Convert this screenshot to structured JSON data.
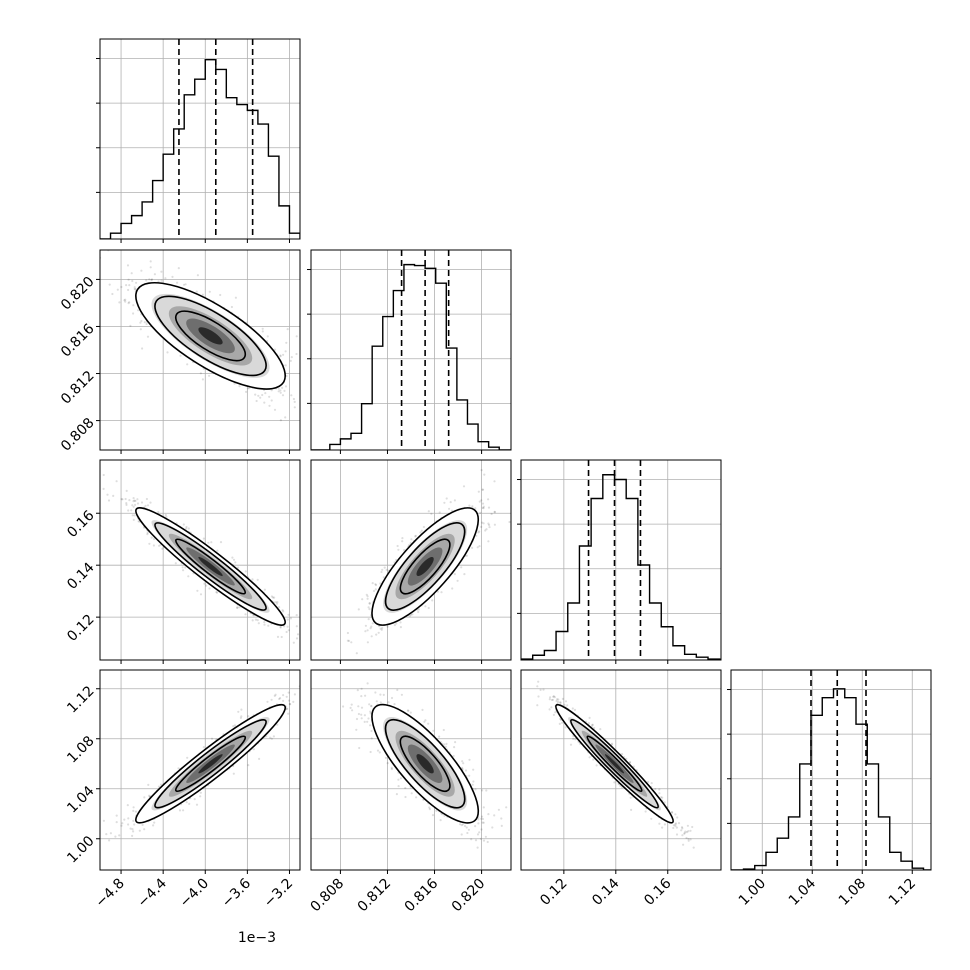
{
  "chart_data": {
    "type": "corner",
    "dimensions": 4,
    "params": [
      {
        "name": "",
        "range": [
          -5.0,
          -3.1
        ],
        "ticks": [
          -4.8,
          -4.4,
          -4.0,
          -3.6,
          -3.2
        ],
        "tick_labels": [
          "−4.8",
          "−4.4",
          "−4.0",
          "−3.6",
          "−3.2"
        ],
        "offset_label": "1e−3",
        "quantiles": [
          -4.25,
          -3.9,
          -3.55
        ],
        "hist_bins": [
          -5.0,
          -4.9,
          -4.8,
          -4.7,
          -4.6,
          -4.5,
          -4.4,
          -4.3,
          -4.2,
          -4.1,
          -4.0,
          -3.9,
          -3.8,
          -3.7,
          -3.6,
          -3.5,
          -3.4,
          -3.3,
          -3.2,
          -3.1
        ],
        "hist_counts": [
          0,
          6,
          16,
          24,
          38,
          60,
          87,
          113,
          148,
          164,
          184,
          174,
          145,
          138,
          132,
          118,
          85,
          34,
          6
        ],
        "hist_ymax": 195
      },
      {
        "name": "",
        "range": [
          0.8055,
          0.8225
        ],
        "ticks": [
          0.808,
          0.812,
          0.816,
          0.82
        ],
        "tick_labels": [
          "0.808",
          "0.812",
          "0.816",
          "0.820"
        ],
        "quantiles": [
          0.8132,
          0.8152,
          0.8172
        ],
        "hist_bins": [
          0.8062,
          0.8071,
          0.808,
          0.8089,
          0.8098,
          0.8107,
          0.8116,
          0.8125,
          0.8134,
          0.8143,
          0.8152,
          0.8161,
          0.817,
          0.8179,
          0.8188,
          0.8197,
          0.8206,
          0.8215
        ],
        "hist_counts": [
          0,
          6,
          12,
          18,
          50,
          112,
          144,
          172,
          200,
          199,
          196,
          180,
          110,
          54,
          28,
          9,
          3
        ],
        "hist_ymax": 205
      },
      {
        "name": "",
        "range": [
          0.1035,
          0.1805
        ],
        "ticks": [
          0.12,
          0.14,
          0.16
        ],
        "tick_labels": [
          "0.12",
          "0.14",
          "0.16"
        ],
        "quantiles": [
          0.1295,
          0.1395,
          0.1495
        ],
        "hist_bins": [
          0.1035,
          0.108,
          0.1125,
          0.117,
          0.1215,
          0.126,
          0.1305,
          0.135,
          0.1395,
          0.144,
          0.1485,
          0.153,
          0.1575,
          0.162,
          0.1665,
          0.171,
          0.1755,
          0.18
        ],
        "hist_counts": [
          1,
          5,
          10,
          30,
          60,
          120,
          170,
          195,
          190,
          170,
          100,
          60,
          35,
          15,
          6,
          3,
          1
        ],
        "hist_ymax": 200
      },
      {
        "name": "",
        "range": [
          0.975,
          1.135
        ],
        "ticks": [
          1.0,
          1.04,
          1.08,
          1.12
        ],
        "tick_labels": [
          "1.00",
          "1.04",
          "1.08",
          "1.12"
        ],
        "quantiles": [
          1.039,
          1.06,
          1.083
        ],
        "hist_bins": [
          0.985,
          0.994,
          1.003,
          1.012,
          1.021,
          1.03,
          1.039,
          1.048,
          1.057,
          1.066,
          1.075,
          1.084,
          1.093,
          1.102,
          1.111,
          1.12,
          1.129
        ],
        "hist_counts": [
          1,
          5,
          20,
          36,
          60,
          120,
          175,
          195,
          205,
          195,
          165,
          120,
          60,
          20,
          10,
          2
        ],
        "hist_ymax": 215
      }
    ],
    "pairs": [
      {
        "x": 0,
        "y": 1,
        "mean": [
          -3.95,
          0.8152
        ],
        "sd": [
          0.33,
          0.0021
        ],
        "corr": -0.75
      },
      {
        "x": 0,
        "y": 2,
        "mean": [
          -3.95,
          0.1395
        ],
        "sd": [
          0.33,
          0.0105
        ],
        "corr": -0.95
      },
      {
        "x": 1,
        "y": 2,
        "mean": [
          0.8152,
          0.1395
        ],
        "sd": [
          0.0021,
          0.0105
        ],
        "corr": 0.8
      },
      {
        "x": 0,
        "y": 3,
        "mean": [
          -3.95,
          1.06
        ],
        "sd": [
          0.33,
          0.022
        ],
        "corr": 0.95
      },
      {
        "x": 1,
        "y": 3,
        "mean": [
          0.8152,
          1.06
        ],
        "sd": [
          0.0021,
          0.022
        ],
        "corr": -0.8
      },
      {
        "x": 2,
        "y": 3,
        "mean": [
          0.1395,
          1.06
        ],
        "sd": [
          0.0105,
          0.022
        ],
        "corr": -0.97
      }
    ],
    "grid": true,
    "title": "",
    "legend": "none"
  }
}
